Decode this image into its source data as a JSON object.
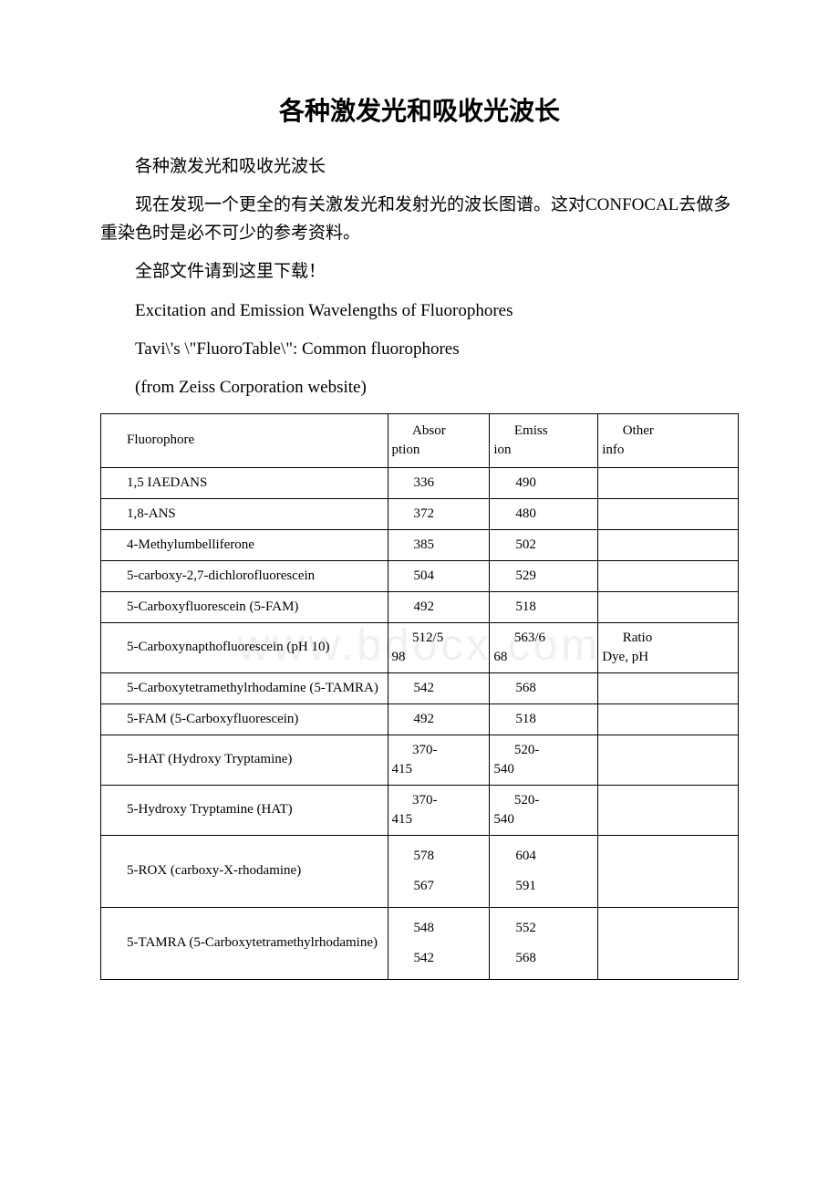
{
  "title": "各种激发光和吸收光波长",
  "paragraphs": [
    "各种激发光和吸收光波长",
    "现在发现一个更全的有关激发光和发射光的波长图谱。这对CONFOCAL去做多重染色时是必不可少的参考资料。",
    "全部文件请到这里下载！",
    "Excitation and Emission Wavelengths of Fluorophores",
    "Tavi\\'s \\\"FluoroTable\\\": Common fluorophores",
    "(from Zeiss Corporation website)"
  ],
  "watermark": "www.bdocx.com",
  "table": {
    "columns": [
      {
        "label": "Fluorophore",
        "width": "45%"
      },
      {
        "label": "Absorption",
        "width": "16%"
      },
      {
        "label": "Emission",
        "width": "17%"
      },
      {
        "label": "Other info",
        "width": "22%"
      }
    ],
    "header_split": {
      "c2a": "Absor",
      "c2b": "ption",
      "c3a": "Emiss",
      "c3b": "ion",
      "c4a": "Other",
      "c4b": "info"
    },
    "rows": [
      {
        "name": "1,5 IAEDANS",
        "abs": "336",
        "em": "490",
        "other": ""
      },
      {
        "name": "1,8-ANS",
        "abs": "372",
        "em": "480",
        "other": ""
      },
      {
        "name": "4-Methylumbelliferone",
        "abs": "385",
        "em": "502",
        "other": ""
      },
      {
        "name": "5-carboxy-2,7-dichlorofluorescein",
        "abs": "504",
        "em": "529",
        "other": ""
      },
      {
        "name": "5-Carboxyfluorescein (5-FAM)",
        "abs": "492",
        "em": "518",
        "other": ""
      },
      {
        "name": "5-Carboxynapthofluorescein (pH 10)",
        "abs": "512/598",
        "em": "563/668",
        "other": "Ratio Dye, pH",
        "split": true,
        "abs_a": "512/5",
        "abs_b": "98",
        "em_a": "563/6",
        "em_b": "68",
        "other_a": "Ratio",
        "other_b": "Dye, pH"
      },
      {
        "name": "5-Carboxytetramethylrhodamine (5-TAMRA)",
        "abs": "542",
        "em": "568",
        "other": ""
      },
      {
        "name": "5-FAM (5-Carboxyfluorescein)",
        "abs": "492",
        "em": "518",
        "other": ""
      },
      {
        "name": "5-HAT (Hydroxy Tryptamine)",
        "abs": "370-415",
        "em": "520-540",
        "other": "",
        "split": true,
        "abs_a": "370-",
        "abs_b": "415",
        "em_a": "520-",
        "em_b": "540"
      },
      {
        "name": "5-Hydroxy Tryptamine (HAT)",
        "abs": "370-415",
        "em": "520-540",
        "other": "",
        "split": true,
        "abs_a": "370-",
        "abs_b": "415",
        "em_a": "520-",
        "em_b": "540"
      },
      {
        "name": "5-ROX (carboxy-X-rhodamine)",
        "abs": "578\n567",
        "em": "604\n591",
        "other": "",
        "multi": true,
        "abs_lines": [
          "578",
          "567"
        ],
        "em_lines": [
          "604",
          "591"
        ]
      },
      {
        "name": "5-TAMRA (5-Carboxytetramethylrhodamine)",
        "abs": "548\n542",
        "em": "552\n568",
        "other": "",
        "multi": true,
        "abs_lines": [
          "548",
          "542"
        ],
        "em_lines": [
          "552",
          "568"
        ]
      }
    ],
    "border_color": "#000000",
    "font_size": 15,
    "cell_padding_left": 28
  },
  "colors": {
    "background": "#ffffff",
    "text": "#000000",
    "watermark": "#f0f0f0"
  },
  "typography": {
    "title_fontsize": 28,
    "body_fontsize": 19,
    "table_fontsize": 15
  }
}
